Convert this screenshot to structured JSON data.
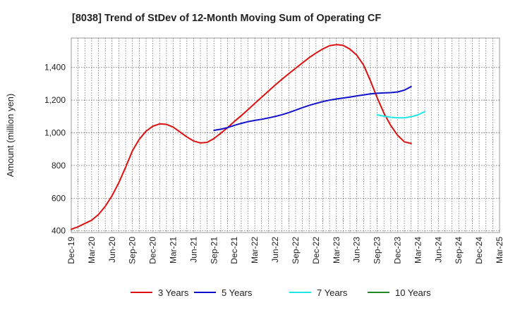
{
  "chart_data": {
    "type": "line",
    "title": "[8038]  Trend of StDev of 12-Month Moving Sum of Operating CF",
    "xlabel": "",
    "ylabel": "Amount (million yen)",
    "ylim": [
      390,
      1580
    ],
    "yticks": [
      400,
      600,
      800,
      1000,
      1200,
      1400
    ],
    "ytick_labels": [
      "400",
      "600",
      "800",
      "1,000",
      "1,200",
      "1,400"
    ],
    "xticks": [
      "Dec-19",
      "Mar-20",
      "Jun-20",
      "Sep-20",
      "Dec-20",
      "Mar-21",
      "Jun-21",
      "Sep-21",
      "Dec-21",
      "Mar-22",
      "Jun-22",
      "Sep-22",
      "Dec-22",
      "Mar-23",
      "Jun-23",
      "Sep-23",
      "Dec-23",
      "Mar-24",
      "Jun-24",
      "Sep-24",
      "Dec-24",
      "Mar-25"
    ],
    "grid": true,
    "legend_position": "bottom",
    "series": [
      {
        "name": "3 Years",
        "color": "#dd1111",
        "start_index": 0,
        "values": [
          410,
          425,
          445,
          465,
          500,
          550,
          615,
          695,
          790,
          890,
          960,
          1010,
          1040,
          1055,
          1052,
          1035,
          1005,
          975,
          950,
          938,
          942,
          965,
          998,
          1032,
          1070,
          1105,
          1142,
          1180,
          1218,
          1255,
          1292,
          1328,
          1362,
          1395,
          1428,
          1460,
          1488,
          1513,
          1533,
          1540,
          1535,
          1512,
          1475,
          1415,
          1320,
          1215,
          1120,
          1045,
          985,
          945,
          935
        ]
      },
      {
        "name": "5 Years",
        "color": "#1111cc",
        "start_index": 21,
        "values": [
          1015,
          1022,
          1032,
          1046,
          1058,
          1068,
          1076,
          1083,
          1091,
          1100,
          1111,
          1124,
          1139,
          1154,
          1168,
          1180,
          1191,
          1200,
          1207,
          1213,
          1219,
          1226,
          1232,
          1238,
          1242,
          1244,
          1246,
          1250,
          1261,
          1283
        ]
      },
      {
        "name": "7 Years",
        "color": "#22e5e5",
        "start_index": 45,
        "values": [
          1110,
          1102,
          1095,
          1092,
          1092,
          1098,
          1110,
          1130
        ]
      },
      {
        "name": "10 Years",
        "color": "#228822",
        "start_index": 0,
        "values": []
      }
    ]
  }
}
